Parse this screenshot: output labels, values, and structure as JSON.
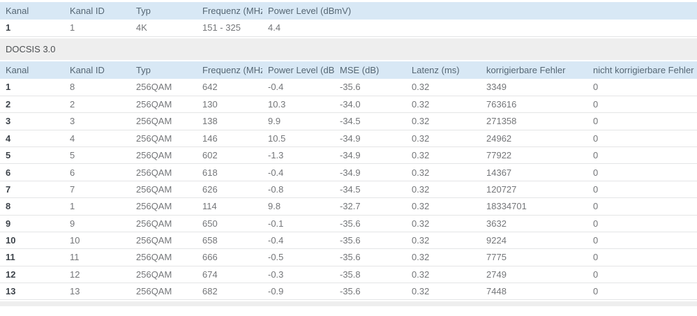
{
  "colors": {
    "header_bg": "#d8e8f5",
    "header_text": "#566774",
    "section_bg": "#eeeeee",
    "cell_text": "#747679",
    "row_border": "#e4e5e6"
  },
  "docsis31_table": {
    "columns": [
      "Kanal",
      "Kanal ID",
      "Typ",
      "Frequenz (MHz)",
      "Power Level (dBmV)"
    ],
    "rows": [
      [
        "1",
        "1",
        "4K",
        "151 - 325",
        "4.4"
      ]
    ]
  },
  "section": {
    "label": "DOCSIS 3.0"
  },
  "docsis30_table": {
    "columns": [
      "Kanal",
      "Kanal ID",
      "Typ",
      "Frequenz (MHz)",
      "Power Level (dBmV)",
      "MSE (dB)",
      "Latenz (ms)",
      "korrigierbare Fehler",
      "nicht korrigierbare Fehler"
    ],
    "rows": [
      [
        "1",
        "8",
        "256QAM",
        "642",
        "-0.4",
        "-35.6",
        "0.32",
        "3349",
        "0"
      ],
      [
        "2",
        "2",
        "256QAM",
        "130",
        "10.3",
        "-34.0",
        "0.32",
        "763616",
        "0"
      ],
      [
        "3",
        "3",
        "256QAM",
        "138",
        "9.9",
        "-34.5",
        "0.32",
        "271358",
        "0"
      ],
      [
        "4",
        "4",
        "256QAM",
        "146",
        "10.5",
        "-34.9",
        "0.32",
        "24962",
        "0"
      ],
      [
        "5",
        "5",
        "256QAM",
        "602",
        "-1.3",
        "-34.9",
        "0.32",
        "77922",
        "0"
      ],
      [
        "6",
        "6",
        "256QAM",
        "618",
        "-0.4",
        "-34.9",
        "0.32",
        "14367",
        "0"
      ],
      [
        "7",
        "7",
        "256QAM",
        "626",
        "-0.8",
        "-34.5",
        "0.32",
        "120727",
        "0"
      ],
      [
        "8",
        "1",
        "256QAM",
        "114",
        "9.8",
        "-32.7",
        "0.32",
        "18334701",
        "0"
      ],
      [
        "9",
        "9",
        "256QAM",
        "650",
        "-0.1",
        "-35.6",
        "0.32",
        "3632",
        "0"
      ],
      [
        "10",
        "10",
        "256QAM",
        "658",
        "-0.4",
        "-35.6",
        "0.32",
        "9224",
        "0"
      ],
      [
        "11",
        "11",
        "256QAM",
        "666",
        "-0.5",
        "-35.6",
        "0.32",
        "7775",
        "0"
      ],
      [
        "12",
        "12",
        "256QAM",
        "674",
        "-0.3",
        "-35.8",
        "0.32",
        "2749",
        "0"
      ],
      [
        "13",
        "13",
        "256QAM",
        "682",
        "-0.9",
        "-35.6",
        "0.32",
        "7448",
        "0"
      ]
    ]
  }
}
